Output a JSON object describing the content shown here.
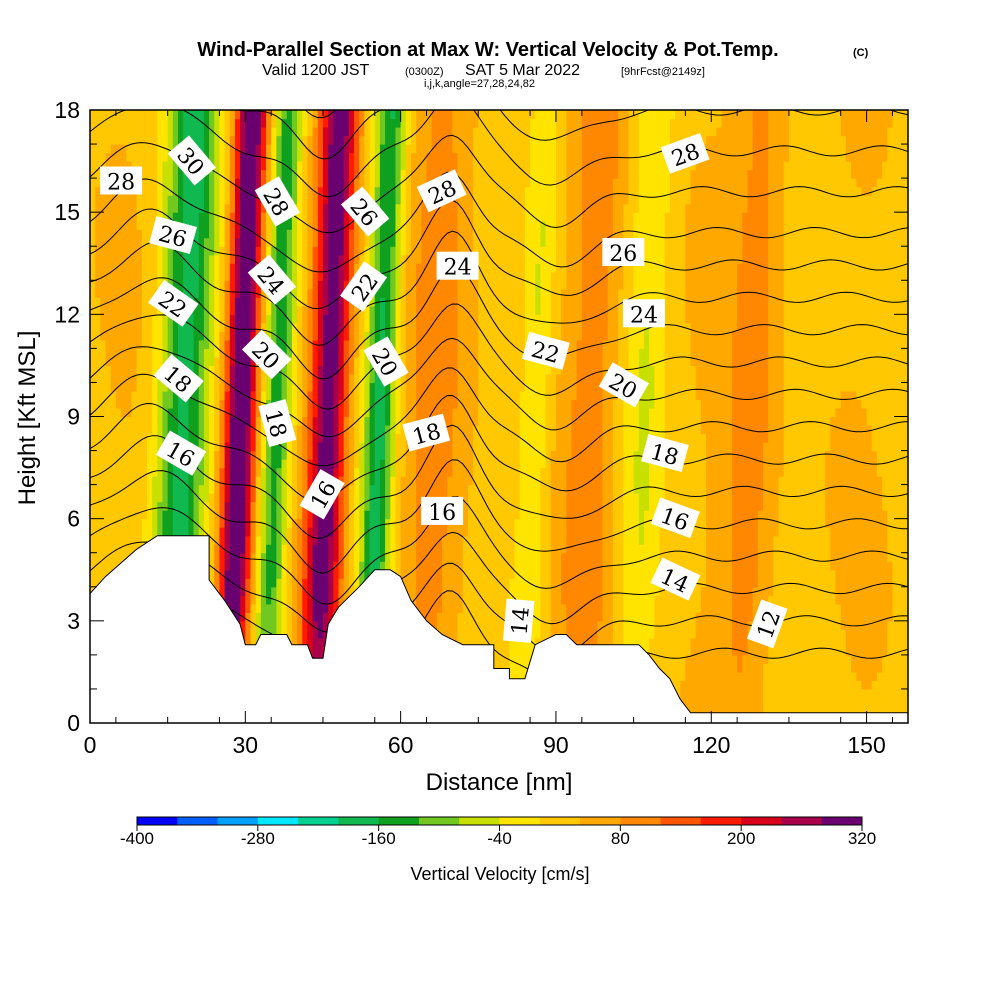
{
  "chart_data": {
    "type": "heatmap",
    "title": "Wind-Parallel Section at Max W: Vertical Velocity & Pot.Temp.",
    "title_mark": "(C)",
    "subtitle": {
      "valid": "Valid 1200 JST",
      "utc": "(0300Z)",
      "date": "SAT 5 Mar 2022",
      "fcst": "[9hrFcst@2149z]"
    },
    "params": "i,j,k,angle=27,28,24,82",
    "xlabel": "Distance [nm]",
    "ylabel": "Height [Kft MSL]",
    "xlim": [
      0,
      158
    ],
    "ylim": [
      0,
      18
    ],
    "x_ticks": [
      0,
      30,
      60,
      90,
      120,
      150
    ],
    "y_ticks": [
      0,
      3,
      6,
      9,
      12,
      15,
      18
    ],
    "colorbar": {
      "title": "Vertical Velocity [cm/s]",
      "min": -400,
      "step": 40,
      "labels": [
        -400,
        -280,
        -160,
        -40,
        80,
        200,
        320
      ],
      "colors": [
        "#0000ff",
        "#0060ff",
        "#00a0ff",
        "#00e8ff",
        "#00d090",
        "#10b850",
        "#10a020",
        "#70c820",
        "#c8e000",
        "#ffe400",
        "#ffc800",
        "#ffa800",
        "#ff8800",
        "#ff5400",
        "#ff1a00",
        "#d8001a",
        "#a8004a",
        "#6a0070"
      ]
    },
    "w_field": {
      "background": 30,
      "bands": [
        {
          "center_x": 18,
          "width_nm": 5,
          "amplitude": -200
        },
        {
          "center_x": 29,
          "width_nm": 3,
          "amplitude": 320
        },
        {
          "center_x": 36,
          "width_nm": 3,
          "amplitude": -180
        },
        {
          "center_x": 46,
          "width_nm": 3.5,
          "amplitude": 300
        },
        {
          "center_x": 56,
          "width_nm": 3,
          "amplitude": -200
        },
        {
          "center_x": 67,
          "width_nm": 6,
          "amplitude": 60
        },
        {
          "center_x": 86,
          "width_nm": 3,
          "amplitude": -70
        },
        {
          "center_x": 97,
          "width_nm": 5,
          "amplitude": 70
        },
        {
          "center_x": 107,
          "width_nm": 4,
          "amplitude": -60
        },
        {
          "center_x": 128,
          "width_nm": 5,
          "amplitude": 70
        }
      ]
    },
    "terrain": [
      [
        0,
        3.8
      ],
      [
        3,
        4.3
      ],
      [
        6,
        4.7
      ],
      [
        9,
        5.1
      ],
      [
        13,
        5.5
      ],
      [
        18,
        5.5
      ],
      [
        23,
        5.5
      ],
      [
        23,
        4.2
      ],
      [
        26,
        3.6
      ],
      [
        29,
        2.9
      ],
      [
        30,
        2.3
      ],
      [
        32,
        2.3
      ],
      [
        33,
        2.6
      ],
      [
        38,
        2.6
      ],
      [
        39,
        2.3
      ],
      [
        42,
        2.3
      ],
      [
        43,
        1.9
      ],
      [
        45,
        1.9
      ],
      [
        46,
        2.9
      ],
      [
        48,
        3.4
      ],
      [
        52,
        4.0
      ],
      [
        55,
        4.5
      ],
      [
        58,
        4.5
      ],
      [
        60,
        4.3
      ],
      [
        62,
        3.6
      ],
      [
        65,
        3.0
      ],
      [
        68,
        2.6
      ],
      [
        72,
        2.3
      ],
      [
        78,
        2.3
      ],
      [
        78,
        1.6
      ],
      [
        81,
        1.6
      ],
      [
        81,
        1.3
      ],
      [
        84,
        1.3
      ],
      [
        86,
        2.3
      ],
      [
        90,
        2.6
      ],
      [
        92,
        2.6
      ],
      [
        94,
        2.3
      ],
      [
        106,
        2.3
      ],
      [
        108,
        2.0
      ],
      [
        110,
        1.6
      ],
      [
        112,
        1.3
      ],
      [
        114,
        0.7
      ],
      [
        116,
        0.3
      ],
      [
        120,
        0.3
      ],
      [
        158,
        0.3
      ],
      [
        158,
        0
      ]
    ],
    "theta_contours": {
      "levels": [
        11,
        12,
        13,
        14,
        15,
        16,
        17,
        18,
        19,
        20,
        21,
        22,
        23,
        24,
        25,
        26,
        27,
        28,
        29,
        30,
        31
      ],
      "labeled": [
        {
          "text": "28",
          "x": 6,
          "y": 15.9,
          "angle": 0
        },
        {
          "text": "26",
          "x": 16,
          "y": 14.3,
          "angle": 15
        },
        {
          "text": "22",
          "x": 16,
          "y": 12.3,
          "angle": 35
        },
        {
          "text": "18",
          "x": 17,
          "y": 10.1,
          "angle": 40
        },
        {
          "text": "16",
          "x": 17.5,
          "y": 7.9,
          "angle": 30
        },
        {
          "text": "30",
          "x": 19.5,
          "y": 16.5,
          "angle": 50
        },
        {
          "text": "28",
          "x": 36,
          "y": 15.3,
          "angle": 60
        },
        {
          "text": "24",
          "x": 35,
          "y": 13.0,
          "angle": 50
        },
        {
          "text": "20",
          "x": 34,
          "y": 10.8,
          "angle": 45
        },
        {
          "text": "18",
          "x": 36,
          "y": 8.8,
          "angle": 75
        },
        {
          "text": "16",
          "x": 45,
          "y": 6.7,
          "angle": -60
        },
        {
          "text": "26",
          "x": 53,
          "y": 15.0,
          "angle": 50
        },
        {
          "text": "22",
          "x": 53,
          "y": 12.8,
          "angle": -55
        },
        {
          "text": "20",
          "x": 57,
          "y": 10.6,
          "angle": 60
        },
        {
          "text": "28",
          "x": 68,
          "y": 15.6,
          "angle": -25
        },
        {
          "text": "24",
          "x": 71,
          "y": 13.4,
          "angle": 0
        },
        {
          "text": "18",
          "x": 65,
          "y": 8.5,
          "angle": -15
        },
        {
          "text": "16",
          "x": 68,
          "y": 6.2,
          "angle": 0
        },
        {
          "text": "14",
          "x": 83,
          "y": 3.0,
          "angle": -85
        },
        {
          "text": "22",
          "x": 88,
          "y": 10.9,
          "angle": 15
        },
        {
          "text": "26",
          "x": 103,
          "y": 13.8,
          "angle": 0
        },
        {
          "text": "24",
          "x": 107,
          "y": 12.0,
          "angle": 0
        },
        {
          "text": "20",
          "x": 103,
          "y": 9.9,
          "angle": 30
        },
        {
          "text": "18",
          "x": 111,
          "y": 7.9,
          "angle": 15
        },
        {
          "text": "16",
          "x": 113,
          "y": 6.0,
          "angle": 20
        },
        {
          "text": "14",
          "x": 113,
          "y": 4.2,
          "angle": 25
        },
        {
          "text": "28",
          "x": 115,
          "y": 16.7,
          "angle": -20
        },
        {
          "text": "12",
          "x": 131,
          "y": 2.9,
          "angle": -70
        }
      ]
    }
  }
}
